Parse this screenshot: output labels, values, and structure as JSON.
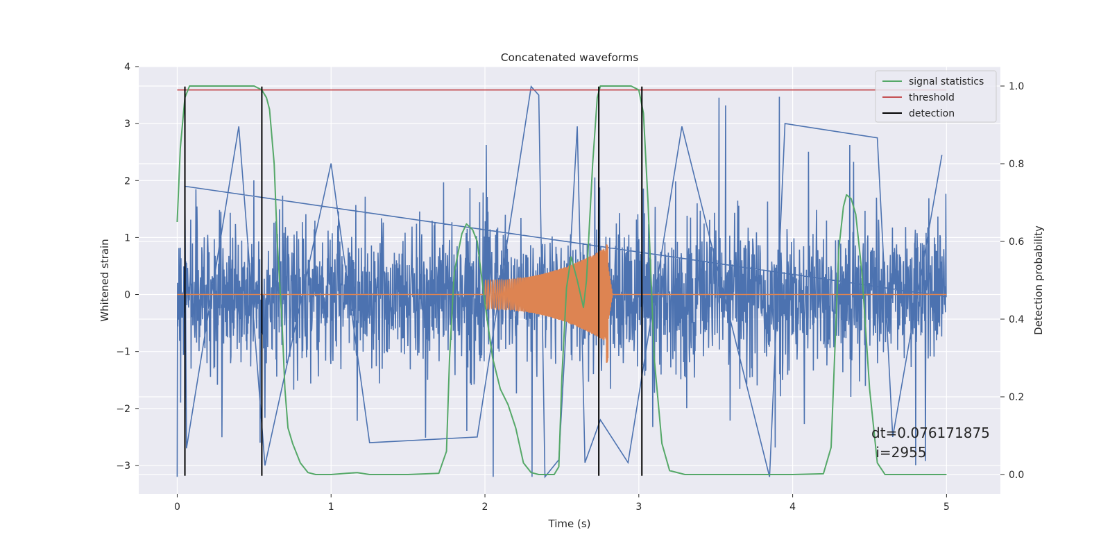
{
  "chart_data": {
    "type": "line",
    "title": "Concatenated waveforms",
    "xlabel": "Time (s)",
    "ylabel": "Whitened strain",
    "ylabel_right": "Detection probability",
    "xlim": [
      -0.25,
      5.35
    ],
    "ylim": [
      -3.5,
      4.0
    ],
    "ylim_right": [
      -0.05,
      1.05
    ],
    "x_ticks": [
      0,
      1,
      2,
      3,
      4,
      5
    ],
    "y_ticks": [
      -3,
      -2,
      -1,
      0,
      1,
      2,
      3,
      4
    ],
    "y_ticks_right": [
      0.0,
      0.2,
      0.4,
      0.6,
      0.8,
      1.0
    ],
    "grid": true,
    "legend_position": "top-right",
    "legend": [
      {
        "label": "signal statistics",
        "color": "#55a868"
      },
      {
        "label": "threshold",
        "color": "#c44e52"
      },
      {
        "label": "detection",
        "color": "#000000"
      }
    ],
    "colors": {
      "noise": "#4c72b0",
      "template": "#dd8452",
      "signal_statistics": "#55a868",
      "threshold": "#c44e52",
      "detection": "#000000",
      "axes_background": "#eaeaf2",
      "grid": "#ffffff"
    },
    "noise": {
      "x_range": [
        0,
        5
      ],
      "core_amplitude": 0.4,
      "peak_range": [
        -3.2,
        3.65
      ]
    },
    "template": {
      "x_start": 2.0,
      "x_merger": 2.8,
      "x_end": 5.0,
      "start_amplitude": 0.25,
      "peak_max": 0.95,
      "peak_min": -1.3
    },
    "signal_statistics": {
      "x": [
        0,
        0.02,
        0.05,
        0.08,
        0.1,
        0.2,
        0.3,
        0.4,
        0.5,
        0.55,
        0.58,
        0.6,
        0.63,
        0.65,
        0.68,
        0.7,
        0.72,
        0.75,
        0.8,
        0.85,
        0.9,
        1.0,
        1.1,
        1.17,
        1.25,
        1.5,
        1.7,
        1.75,
        1.77,
        1.8,
        1.85,
        1.88,
        1.92,
        1.95,
        2.0,
        2.05,
        2.1,
        2.15,
        2.2,
        2.25,
        2.3,
        2.35,
        2.4,
        2.45,
        2.48,
        2.5,
        2.53,
        2.56,
        2.6,
        2.64,
        2.66,
        2.7,
        2.73,
        2.75,
        2.8,
        2.9,
        2.95,
        3.0,
        3.03,
        3.06,
        3.1,
        3.15,
        3.2,
        3.3,
        3.5,
        4.0,
        4.2,
        4.25,
        4.28,
        4.3,
        4.33,
        4.35,
        4.38,
        4.41,
        4.45,
        4.5,
        4.55,
        4.6,
        4.7,
        5.0
      ],
      "y": [
        0.65,
        0.84,
        0.97,
        1.0,
        1.0,
        1.0,
        1.0,
        1.0,
        1.0,
        0.99,
        0.97,
        0.94,
        0.8,
        0.6,
        0.4,
        0.22,
        0.12,
        0.08,
        0.03,
        0.005,
        0.0,
        0.0,
        0.003,
        0.005,
        0.0,
        0.0,
        0.003,
        0.06,
        0.3,
        0.52,
        0.62,
        0.645,
        0.63,
        0.6,
        0.44,
        0.3,
        0.22,
        0.18,
        0.12,
        0.03,
        0.005,
        0.0,
        0.0,
        0.0,
        0.02,
        0.25,
        0.48,
        0.56,
        0.5,
        0.43,
        0.5,
        0.8,
        0.97,
        1.0,
        1.0,
        1.0,
        1.0,
        0.99,
        0.93,
        0.7,
        0.3,
        0.08,
        0.01,
        0.0,
        0.0,
        0.0,
        0.002,
        0.07,
        0.38,
        0.58,
        0.69,
        0.72,
        0.71,
        0.67,
        0.52,
        0.22,
        0.03,
        0.0,
        0.0,
        0.0
      ]
    },
    "threshold": {
      "x": [
        0,
        5
      ],
      "value": 0.99
    },
    "detections": [
      {
        "x": 0.05,
        "y": [
          -3.18,
          3.65
        ]
      },
      {
        "x": 0.55,
        "y": [
          -3.18,
          3.65
        ]
      },
      {
        "x": 2.74,
        "y": [
          -3.18,
          3.65
        ]
      },
      {
        "x": 3.02,
        "y": [
          -3.18,
          3.65
        ]
      }
    ],
    "annotation": [
      "dt=0.076171875",
      " i=2955"
    ]
  }
}
